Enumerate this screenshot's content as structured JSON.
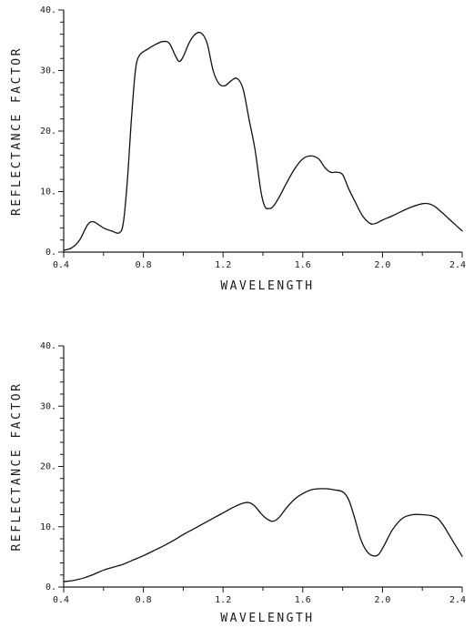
{
  "chart_data": [
    {
      "type": "line",
      "xlabel": "WAVELENGTH",
      "ylabel": "REFLECTANCE FACTOR",
      "xlim": [
        0.4,
        2.4
      ],
      "ylim": [
        0,
        40
      ],
      "x_tick_labels": [
        "0.4",
        "0.8",
        "1.2",
        "1.6",
        "2.0",
        "2.4"
      ],
      "y_tick_labels": [
        "0.",
        "10.",
        "20.",
        "30.",
        "40."
      ],
      "grid": false,
      "series": [
        {
          "x": [
            0.4,
            0.44,
            0.48,
            0.52,
            0.55,
            0.6,
            0.64,
            0.68,
            0.7,
            0.72,
            0.74,
            0.76,
            0.78,
            0.82,
            0.86,
            0.9,
            0.93,
            0.96,
            0.98,
            1.0,
            1.03,
            1.06,
            1.09,
            1.12,
            1.15,
            1.18,
            1.21,
            1.24,
            1.27,
            1.3,
            1.33,
            1.36,
            1.39,
            1.41,
            1.43,
            1.45,
            1.48,
            1.52,
            1.56,
            1.6,
            1.64,
            1.68,
            1.71,
            1.74,
            1.77,
            1.8,
            1.83,
            1.86,
            1.9,
            1.94,
            1.97,
            2.0,
            2.05,
            2.1,
            2.15,
            2.2,
            2.23,
            2.26,
            2.3,
            2.35,
            2.4
          ],
          "y": [
            0.3,
            0.7,
            2.0,
            4.5,
            5.0,
            4.0,
            3.5,
            3.2,
            5.0,
            12.0,
            22.0,
            30.0,
            32.5,
            33.5,
            34.3,
            34.8,
            34.5,
            32.5,
            31.5,
            32.3,
            34.6,
            36.0,
            36.2,
            34.5,
            30.0,
            27.8,
            27.5,
            28.3,
            28.7,
            27.0,
            22.0,
            17.0,
            10.0,
            7.5,
            7.2,
            7.5,
            9.0,
            11.5,
            13.8,
            15.4,
            15.9,
            15.4,
            14.0,
            13.2,
            13.2,
            12.8,
            10.5,
            8.5,
            6.0,
            4.7,
            4.8,
            5.3,
            6.0,
            6.8,
            7.5,
            8.0,
            8.0,
            7.6,
            6.5,
            5.0,
            3.5
          ]
        }
      ]
    },
    {
      "type": "line",
      "xlabel": "WAVELENGTH",
      "ylabel": "REFLECTANCE FACTOR",
      "xlim": [
        0.4,
        2.4
      ],
      "ylim": [
        0,
        40
      ],
      "x_tick_labels": [
        "0.4",
        "0.8",
        "1.2",
        "1.6",
        "2.0",
        "2.4"
      ],
      "y_tick_labels": [
        "0.",
        "10.",
        "20.",
        "30.",
        "40."
      ],
      "grid": false,
      "series": [
        {
          "x": [
            0.4,
            0.45,
            0.5,
            0.55,
            0.6,
            0.65,
            0.7,
            0.75,
            0.8,
            0.85,
            0.9,
            0.95,
            1.0,
            1.05,
            1.1,
            1.15,
            1.2,
            1.25,
            1.3,
            1.33,
            1.36,
            1.39,
            1.42,
            1.45,
            1.48,
            1.52,
            1.56,
            1.6,
            1.64,
            1.68,
            1.72,
            1.76,
            1.8,
            1.83,
            1.86,
            1.89,
            1.92,
            1.95,
            1.98,
            2.01,
            2.05,
            2.1,
            2.15,
            2.2,
            2.25,
            2.28,
            2.31,
            2.35,
            2.4
          ],
          "y": [
            0.9,
            1.1,
            1.5,
            2.1,
            2.8,
            3.3,
            3.8,
            4.5,
            5.2,
            6.0,
            6.8,
            7.7,
            8.7,
            9.6,
            10.5,
            11.4,
            12.3,
            13.2,
            13.9,
            14.0,
            13.4,
            12.2,
            11.3,
            10.9,
            11.5,
            13.2,
            14.6,
            15.5,
            16.1,
            16.3,
            16.3,
            16.1,
            15.8,
            14.5,
            11.5,
            8.0,
            6.0,
            5.2,
            5.4,
            7.0,
            9.5,
            11.4,
            12.0,
            12.0,
            11.8,
            11.3,
            10.0,
            7.8,
            5.1
          ]
        }
      ]
    }
  ]
}
